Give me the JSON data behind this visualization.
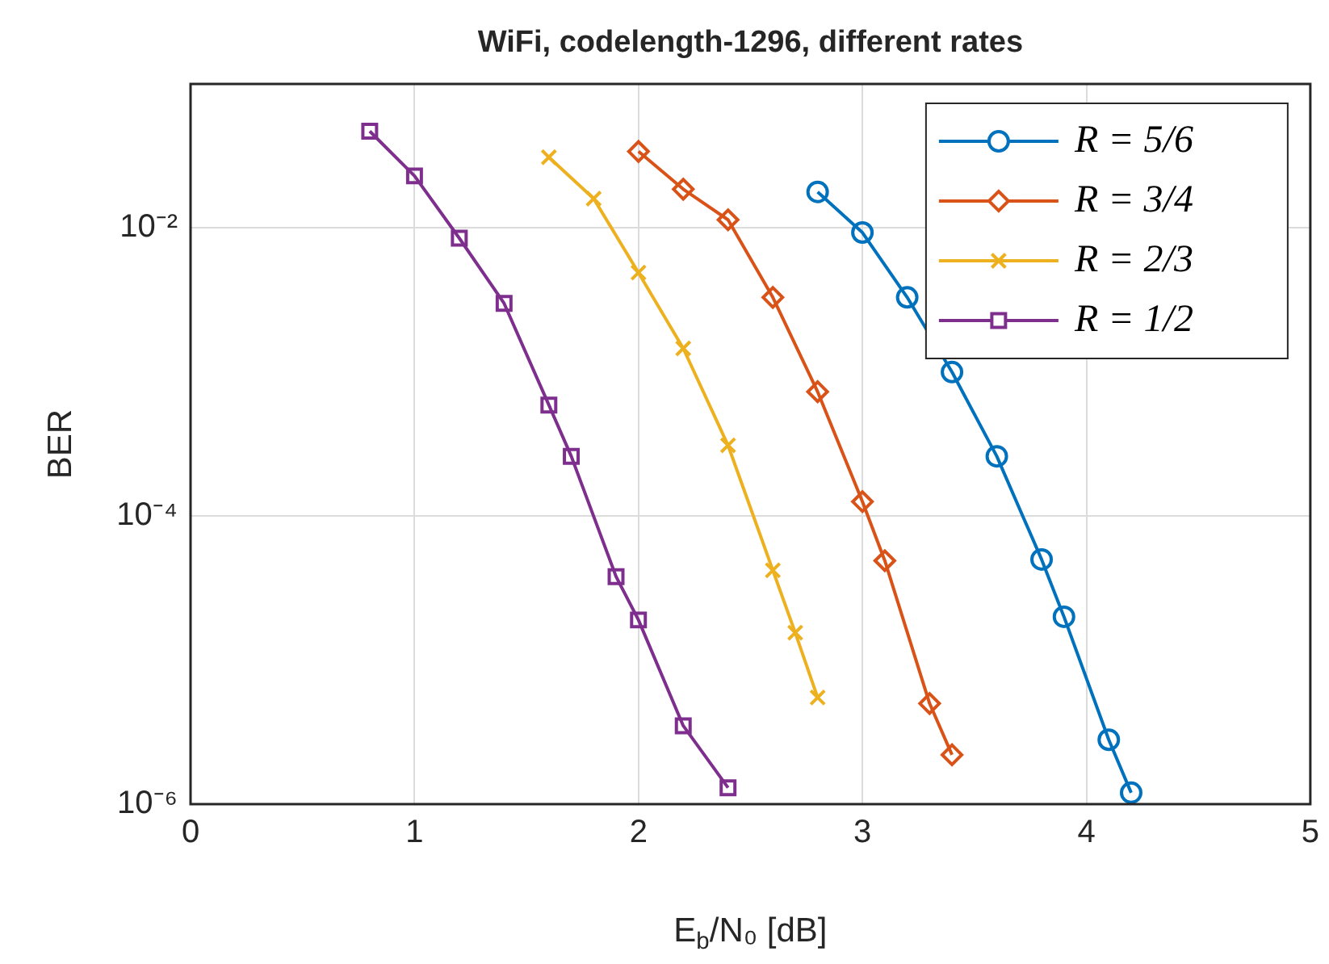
{
  "chart_data": {
    "type": "line",
    "title": "WiFi, codelength-1296, different rates",
    "xlabel": "E$_{b}$/N₀ [dB]",
    "ylabel": "BER",
    "xlim": [
      0,
      5
    ],
    "xticks": [
      0,
      1,
      2,
      3,
      4,
      5
    ],
    "ylim": [
      1e-06,
      0.1
    ],
    "yticks": [
      {
        "value": 1e-06,
        "label": "10⁻⁶"
      },
      {
        "value": 0.0001,
        "label": "10⁻⁴"
      },
      {
        "value": 0.01,
        "label": "10⁻²"
      }
    ],
    "log": "y",
    "grid": true,
    "legend": "top right",
    "line_style": "solid",
    "series": [
      {
        "name": "R = 5/6",
        "color": "#0072bd",
        "marker": "circle",
        "x": [
          2.8,
          3.0,
          3.2,
          3.4,
          3.6,
          3.8,
          3.9,
          4.1,
          4.2
        ],
        "values": [
          0.0178,
          0.0093,
          0.0033,
          0.001,
          0.00026,
          5e-05,
          2e-05,
          2.8e-06,
          1.2e-06
        ]
      },
      {
        "name": "R = 3/4",
        "color": "#d95319",
        "marker": "diamond",
        "x": [
          2.0,
          2.2,
          2.4,
          2.6,
          2.8,
          3.0,
          3.1,
          3.3,
          3.4
        ],
        "values": [
          0.034,
          0.0186,
          0.0114,
          0.0033,
          0.00073,
          0.000126,
          4.9e-05,
          5e-06,
          2.2e-06
        ]
      },
      {
        "name": "R = 2/3",
        "color": "#edb120",
        "marker": "cross",
        "x": [
          1.6,
          1.8,
          2.0,
          2.2,
          2.4,
          2.6,
          2.7,
          2.8
        ],
        "values": [
          0.031,
          0.016,
          0.0049,
          0.00146,
          0.00031,
          4.2e-05,
          1.55e-05,
          5.5e-06
        ]
      },
      {
        "name": "R = 1/2",
        "color": "#7e2f8e",
        "marker": "square",
        "x": [
          0.8,
          1.0,
          1.2,
          1.4,
          1.6,
          1.7,
          1.9,
          2.0,
          2.2,
          2.4
        ],
        "values": [
          0.047,
          0.023,
          0.0085,
          0.003,
          0.00059,
          0.00026,
          3.8e-05,
          1.9e-05,
          3.5e-06,
          1.3e-06
        ]
      }
    ]
  }
}
